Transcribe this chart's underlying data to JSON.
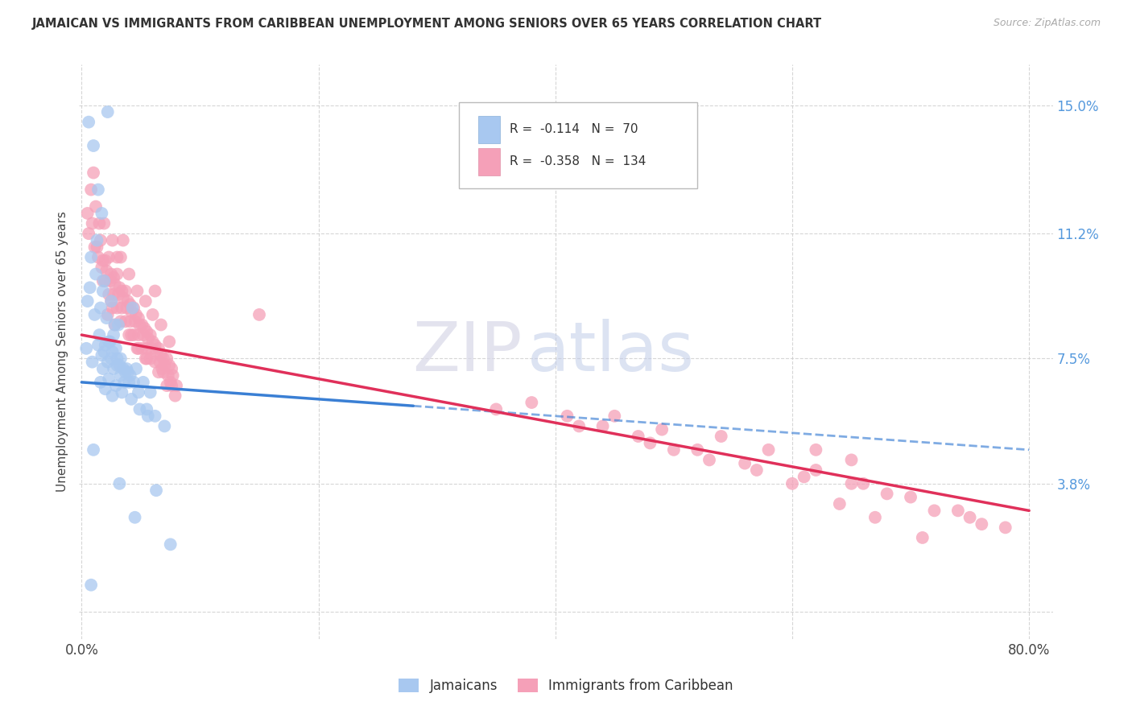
{
  "title": "JAMAICAN VS IMMIGRANTS FROM CARIBBEAN UNEMPLOYMENT AMONG SENIORS OVER 65 YEARS CORRELATION CHART",
  "source": "Source: ZipAtlas.com",
  "ylabel": "Unemployment Among Seniors over 65 years",
  "yticks": [
    0.0,
    0.038,
    0.075,
    0.112,
    0.15
  ],
  "ytick_labels": [
    "",
    "3.8%",
    "7.5%",
    "11.2%",
    "15.0%"
  ],
  "xmin": -0.002,
  "xmax": 0.82,
  "ymin": -0.008,
  "ymax": 0.162,
  "series1_label": "Jamaicans",
  "series1_color": "#a8c8f0",
  "series1_R": -0.114,
  "series1_N": 70,
  "series2_label": "Immigrants from Caribbean",
  "series2_color": "#f5a0b8",
  "series2_R": -0.358,
  "series2_N": 134,
  "line1_color": "#3a7fd4",
  "line2_color": "#e0305a",
  "line1_start_x": 0.0,
  "line1_end_x": 0.28,
  "line1_y_at_0": 0.068,
  "line1_y_at_end": 0.058,
  "line1_dash_end_x": 0.8,
  "line1_dash_y_at_end": 0.048,
  "line2_start_x": 0.0,
  "line2_end_x": 0.8,
  "line2_y_at_0": 0.082,
  "line2_y_at_end": 0.03,
  "watermark_zip": "ZIP",
  "background_color": "#ffffff",
  "grid_color": "#cccccc",
  "scatter1_x": [
    0.022,
    0.01,
    0.014,
    0.017,
    0.013,
    0.008,
    0.019,
    0.006,
    0.025,
    0.011,
    0.031,
    0.027,
    0.023,
    0.018,
    0.005,
    0.016,
    0.021,
    0.012,
    0.029,
    0.007,
    0.033,
    0.038,
    0.043,
    0.028,
    0.015,
    0.02,
    0.026,
    0.009,
    0.035,
    0.024,
    0.041,
    0.036,
    0.03,
    0.046,
    0.052,
    0.058,
    0.032,
    0.039,
    0.044,
    0.048,
    0.004,
    0.017,
    0.022,
    0.027,
    0.033,
    0.04,
    0.014,
    0.019,
    0.025,
    0.03,
    0.037,
    0.055,
    0.062,
    0.07,
    0.075,
    0.018,
    0.023,
    0.029,
    0.034,
    0.042,
    0.049,
    0.056,
    0.063,
    0.016,
    0.02,
    0.026,
    0.032,
    0.01,
    0.045,
    0.008
  ],
  "scatter1_y": [
    0.148,
    0.138,
    0.125,
    0.118,
    0.11,
    0.105,
    0.098,
    0.145,
    0.092,
    0.088,
    0.085,
    0.082,
    0.08,
    0.095,
    0.092,
    0.09,
    0.087,
    0.1,
    0.078,
    0.096,
    0.075,
    0.072,
    0.09,
    0.085,
    0.082,
    0.079,
    0.077,
    0.074,
    0.072,
    0.08,
    0.07,
    0.068,
    0.075,
    0.072,
    0.068,
    0.065,
    0.073,
    0.071,
    0.068,
    0.065,
    0.078,
    0.076,
    0.074,
    0.072,
    0.07,
    0.068,
    0.079,
    0.077,
    0.075,
    0.073,
    0.071,
    0.06,
    0.058,
    0.055,
    0.02,
    0.072,
    0.069,
    0.067,
    0.065,
    0.063,
    0.06,
    0.058,
    0.036,
    0.068,
    0.066,
    0.064,
    0.038,
    0.048,
    0.028,
    0.008
  ],
  "scatter2_x": [
    0.005,
    0.01,
    0.018,
    0.025,
    0.03,
    0.008,
    0.015,
    0.022,
    0.028,
    0.035,
    0.042,
    0.048,
    0.055,
    0.062,
    0.068,
    0.075,
    0.012,
    0.019,
    0.026,
    0.033,
    0.04,
    0.047,
    0.054,
    0.06,
    0.067,
    0.074,
    0.009,
    0.016,
    0.023,
    0.03,
    0.037,
    0.044,
    0.051,
    0.058,
    0.065,
    0.072,
    0.006,
    0.013,
    0.02,
    0.027,
    0.034,
    0.041,
    0.048,
    0.055,
    0.062,
    0.069,
    0.076,
    0.011,
    0.018,
    0.025,
    0.032,
    0.039,
    0.046,
    0.053,
    0.06,
    0.067,
    0.074,
    0.014,
    0.021,
    0.028,
    0.035,
    0.042,
    0.049,
    0.056,
    0.063,
    0.07,
    0.077,
    0.017,
    0.024,
    0.031,
    0.038,
    0.045,
    0.052,
    0.059,
    0.066,
    0.073,
    0.08,
    0.02,
    0.027,
    0.034,
    0.041,
    0.048,
    0.055,
    0.062,
    0.069,
    0.076,
    0.023,
    0.03,
    0.037,
    0.044,
    0.051,
    0.058,
    0.065,
    0.072,
    0.079,
    0.026,
    0.033,
    0.04,
    0.047,
    0.054,
    0.35,
    0.42,
    0.48,
    0.52,
    0.56,
    0.61,
    0.65,
    0.68,
    0.72,
    0.75,
    0.78,
    0.62,
    0.66,
    0.7,
    0.74,
    0.76,
    0.62,
    0.65,
    0.54,
    0.58,
    0.45,
    0.49,
    0.38,
    0.41,
    0.44,
    0.47,
    0.5,
    0.53,
    0.57,
    0.6,
    0.64,
    0.67,
    0.71,
    0.15
  ],
  "scatter2_y": [
    0.118,
    0.13,
    0.098,
    0.092,
    0.105,
    0.125,
    0.115,
    0.088,
    0.085,
    0.11,
    0.082,
    0.078,
    0.075,
    0.095,
    0.072,
    0.068,
    0.12,
    0.115,
    0.11,
    0.105,
    0.1,
    0.095,
    0.092,
    0.088,
    0.085,
    0.08,
    0.115,
    0.11,
    0.105,
    0.1,
    0.095,
    0.09,
    0.085,
    0.082,
    0.078,
    0.075,
    0.112,
    0.108,
    0.104,
    0.099,
    0.095,
    0.091,
    0.087,
    0.083,
    0.079,
    0.075,
    0.072,
    0.108,
    0.104,
    0.1,
    0.096,
    0.092,
    0.088,
    0.084,
    0.08,
    0.076,
    0.073,
    0.105,
    0.101,
    0.097,
    0.093,
    0.089,
    0.085,
    0.081,
    0.077,
    0.073,
    0.07,
    0.102,
    0.098,
    0.094,
    0.09,
    0.086,
    0.082,
    0.078,
    0.074,
    0.07,
    0.067,
    0.098,
    0.094,
    0.09,
    0.086,
    0.082,
    0.078,
    0.074,
    0.071,
    0.067,
    0.094,
    0.09,
    0.086,
    0.082,
    0.078,
    0.075,
    0.071,
    0.067,
    0.064,
    0.09,
    0.086,
    0.082,
    0.078,
    0.075,
    0.06,
    0.055,
    0.05,
    0.048,
    0.044,
    0.04,
    0.038,
    0.035,
    0.03,
    0.028,
    0.025,
    0.042,
    0.038,
    0.034,
    0.03,
    0.026,
    0.048,
    0.045,
    0.052,
    0.048,
    0.058,
    0.054,
    0.062,
    0.058,
    0.055,
    0.052,
    0.048,
    0.045,
    0.042,
    0.038,
    0.032,
    0.028,
    0.022,
    0.088
  ]
}
